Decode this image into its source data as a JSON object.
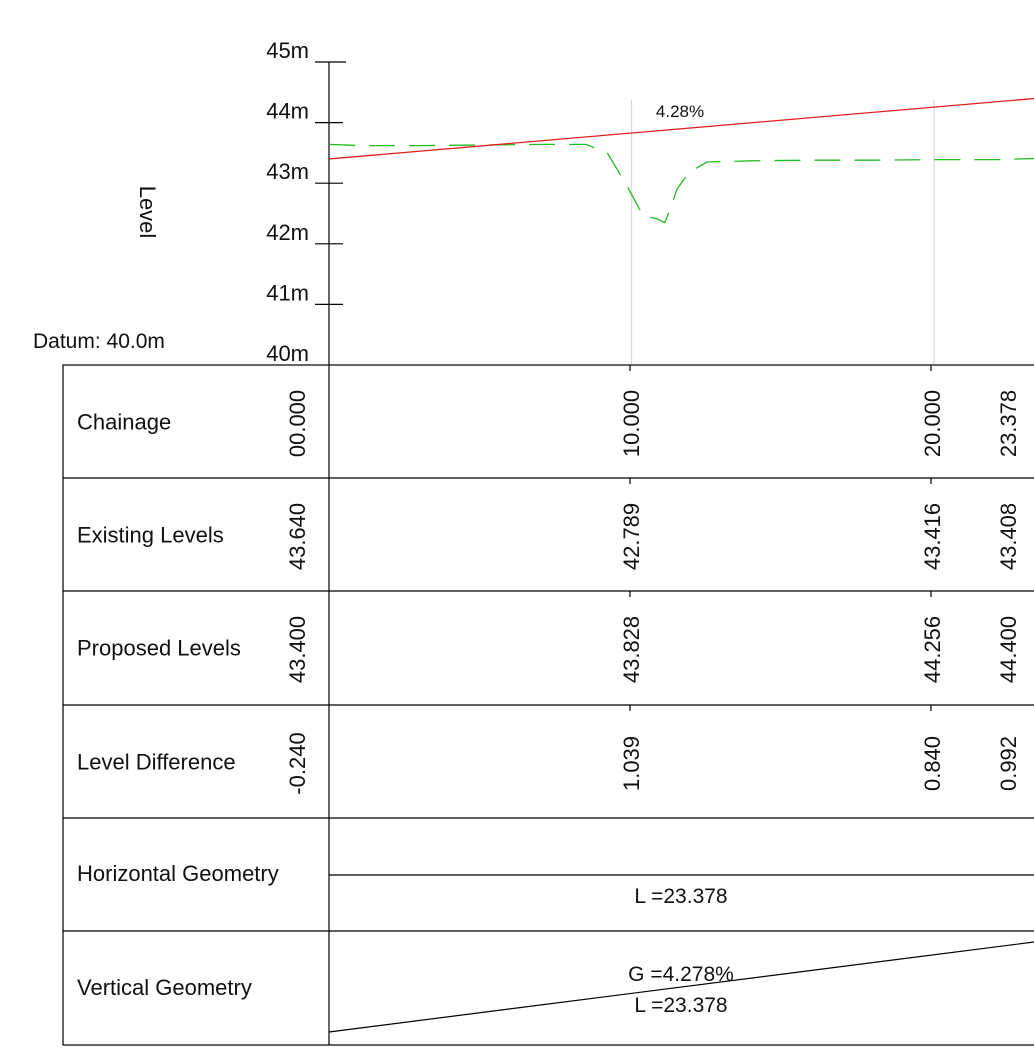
{
  "profile": {
    "axis_label": "Level",
    "datum_label": "Datum: 40.0m",
    "y_ticks": [
      "40m",
      "41m",
      "42m",
      "43m",
      "44m",
      "45m"
    ],
    "y_tick_values": [
      40,
      41,
      42,
      43,
      44,
      45
    ],
    "y_range": [
      40,
      45
    ],
    "x_range": [
      0,
      23.378
    ],
    "gradient_label": "4.28%",
    "grid_chainages": [
      10,
      20
    ],
    "proposed_line": {
      "color": "#e02020",
      "points": [
        [
          0,
          43.4
        ],
        [
          23.378,
          44.4
        ]
      ]
    },
    "existing_ground": {
      "color": "#22bb22",
      "points": [
        [
          0.0,
          43.64
        ],
        [
          1.0,
          43.62
        ],
        [
          3.0,
          43.62
        ],
        [
          5.0,
          43.63
        ],
        [
          7.0,
          43.64
        ],
        [
          8.5,
          43.64
        ],
        [
          9.2,
          43.5
        ],
        [
          9.8,
          43.0
        ],
        [
          10.4,
          42.45
        ],
        [
          10.8,
          42.42
        ],
        [
          11.1,
          42.35
        ],
        [
          11.3,
          42.6
        ],
        [
          11.5,
          42.9
        ],
        [
          11.9,
          43.18
        ],
        [
          12.5,
          43.35
        ],
        [
          14.0,
          43.37
        ],
        [
          16.0,
          43.38
        ],
        [
          18.0,
          43.38
        ],
        [
          20.0,
          43.39
        ],
        [
          22.0,
          43.39
        ],
        [
          23.378,
          43.408
        ]
      ]
    }
  },
  "table": {
    "rows": [
      {
        "label": "Chainage",
        "values": [
          "00.000",
          "10.000",
          "20.000",
          "23.378"
        ]
      },
      {
        "label": "Existing Levels",
        "values": [
          "43.640",
          "42.789",
          "43.416",
          "43.408"
        ]
      },
      {
        "label": "Proposed Levels",
        "values": [
          "43.400",
          "43.828",
          "44.256",
          "44.400"
        ]
      },
      {
        "label": "Level Difference",
        "values": [
          "-0.240",
          "1.039",
          "0.840",
          "0.992"
        ]
      }
    ],
    "horizontal_geometry": {
      "label": "Horizontal Geometry",
      "length": "L =23.378"
    },
    "vertical_geometry": {
      "label": "Vertical Geometry",
      "grade": "G =4.278%",
      "length": "L =23.378"
    }
  }
}
